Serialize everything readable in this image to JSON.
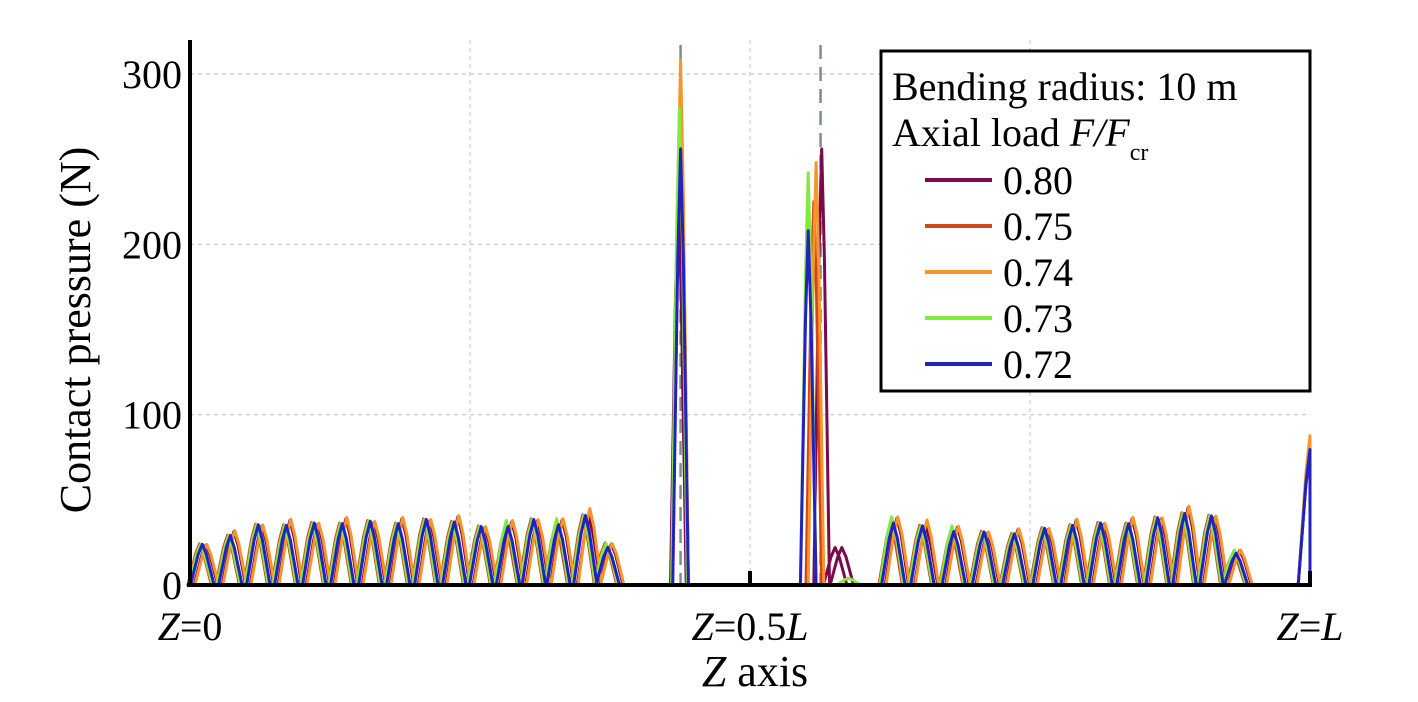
{
  "chart_data": {
    "type": "line",
    "title": "",
    "xlabel": {
      "var": "Z",
      "rest": " axis"
    },
    "ylabel": "Contact pressure (N)",
    "xlim": [
      0,
      1
    ],
    "ylim": [
      0,
      300
    ],
    "grid": true,
    "y_ticks": [
      0,
      100,
      200,
      300
    ],
    "x_ticks": [
      {
        "value": 0,
        "var": "Z",
        "eq": "=0",
        "unit": ""
      },
      {
        "value": 0.5,
        "var": "Z",
        "eq": "=0.5",
        "unit": "L"
      },
      {
        "value": 1,
        "var": "Z",
        "eq": "=",
        "unit": "L"
      }
    ],
    "x_grid": [
      0.25,
      0.5,
      0.75
    ],
    "marker_lines_z": [
      0.438,
      0.563
    ],
    "legend": {
      "placement": "top-right",
      "line1": "Bending radius: 10 m",
      "line2_text": "Axial load ",
      "line2_var": "F/F",
      "line2_sub": "cr"
    },
    "periodic_peaks": [
      [
        0.011,
        23
      ],
      [
        0.036,
        29
      ],
      [
        0.061,
        34
      ],
      [
        0.086,
        35
      ],
      [
        0.111,
        35
      ],
      [
        0.136,
        36
      ],
      [
        0.161,
        36
      ],
      [
        0.186,
        36
      ],
      [
        0.211,
        37
      ],
      [
        0.236,
        37
      ],
      [
        0.26,
        33
      ],
      [
        0.284,
        35
      ],
      [
        0.307,
        37
      ],
      [
        0.329,
        36
      ],
      [
        0.353,
        40
      ],
      [
        0.373,
        23
      ],
      [
        0.628,
        37
      ],
      [
        0.654,
        34
      ],
      [
        0.682,
        32
      ],
      [
        0.709,
        30
      ],
      [
        0.736,
        30
      ],
      [
        0.763,
        32
      ],
      [
        0.788,
        35
      ],
      [
        0.813,
        35
      ],
      [
        0.838,
        36
      ],
      [
        0.864,
        38
      ],
      [
        0.888,
        42
      ],
      [
        0.912,
        39
      ],
      [
        0.934,
        19
      ],
      [
        1.0,
        78
      ]
    ],
    "series": [
      {
        "name": "0.80",
        "color": "#7a0a4a",
        "offset": 0.004,
        "gain": 1.04,
        "extra_peaks": [
          [
            0.436,
            230
          ],
          [
            0.564,
            256
          ],
          [
            0.576,
            22
          ],
          [
            0.582,
            22
          ]
        ]
      },
      {
        "name": "0.75",
        "color": "#d2451a",
        "offset": 0.003,
        "gain": 1.03,
        "extra_peaks": [
          [
            0.438,
            290
          ],
          [
            0.557,
            225
          ]
        ]
      },
      {
        "name": "0.74",
        "color": "#f5952c",
        "offset": 0.005,
        "gain": 1.08,
        "extra_peaks": [
          [
            0.438,
            308
          ],
          [
            0.559,
            248
          ]
        ]
      },
      {
        "name": "0.73",
        "color": "#84e840",
        "offset": 0.002,
        "gain": 1.04,
        "extra_peaks": [
          [
            0.437,
            280
          ],
          [
            0.552,
            242
          ],
          [
            0.588,
            4
          ]
        ]
      },
      {
        "name": "0.72",
        "color": "#2222c0",
        "offset": 0.0,
        "gain": 1.0,
        "extra_peaks": [
          [
            0.438,
            256
          ],
          [
            0.552,
            208
          ]
        ]
      }
    ]
  }
}
